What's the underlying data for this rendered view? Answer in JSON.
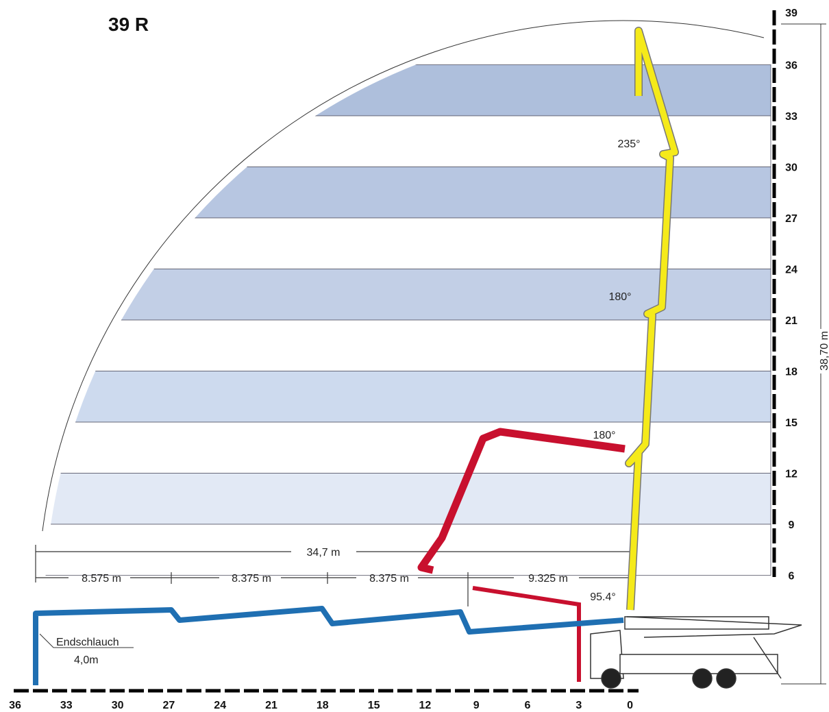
{
  "title": "39 R",
  "height_scale": {
    "labels": [
      "39",
      "36",
      "33",
      "30",
      "27",
      "24",
      "21",
      "18",
      "15",
      "12",
      "9",
      "6"
    ]
  },
  "reach_scale": {
    "labels": [
      "36",
      "33",
      "30",
      "27",
      "24",
      "21",
      "18",
      "15",
      "12",
      "9",
      "6",
      "3",
      "0"
    ]
  },
  "max_height": "38,70 m",
  "max_reach": "34,7 m",
  "boom_sections": [
    "8.575 m",
    "8.375 m",
    "8.375 m",
    "9.325 m"
  ],
  "angles": [
    "235°",
    "180°",
    "180°",
    "95.4°"
  ],
  "end_hose": {
    "label": "Endschlauch",
    "length": "4,0m"
  }
}
